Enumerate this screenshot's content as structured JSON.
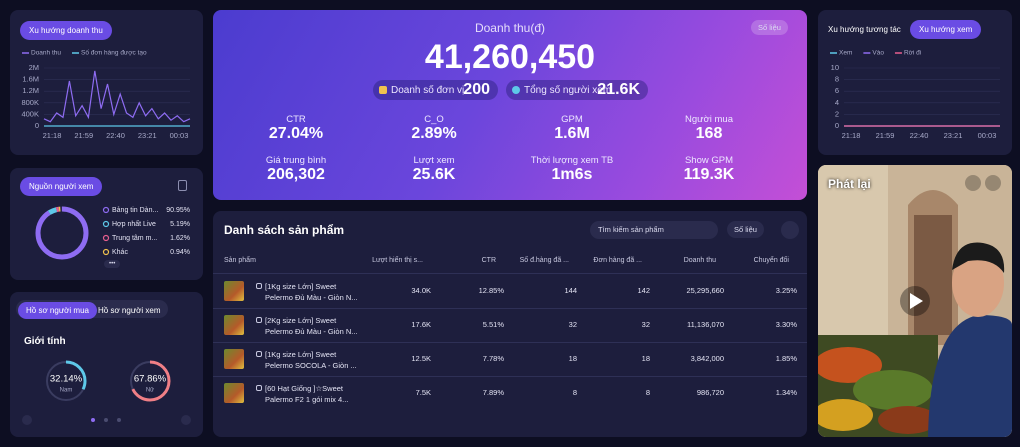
{
  "revenue_trend": {
    "tab": "Xu hướng doanh thu",
    "type": "line",
    "grid": true,
    "series": [
      {
        "name": "Doanh thu",
        "color": "#8e6cf2",
        "values": [
          250000,
          150000,
          450000,
          300000,
          1550000,
          350000,
          700000,
          300000,
          1900000,
          600000,
          1450000,
          400000,
          1100000,
          450000,
          300000,
          800000,
          350000,
          600000,
          250000,
          450000,
          200000,
          350000,
          150000,
          250000
        ]
      },
      {
        "name": "Số đơn hàng được tạo",
        "color": "#5ec8e8",
        "values": [
          0,
          0,
          0,
          0,
          0,
          0,
          0,
          0,
          0,
          0,
          0,
          0,
          0,
          0,
          0,
          0,
          0,
          0,
          0,
          0,
          0,
          0,
          0,
          0
        ]
      }
    ],
    "ylim": [
      0,
      2000000
    ],
    "yticks": [
      0,
      {
        "value": 400000,
        "label": "400K"
      },
      {
        "value": 800000,
        "label": "800K"
      },
      {
        "value": 1200000,
        "label": "1.2M"
      },
      {
        "value": 1600000,
        "label": "1.6M"
      },
      {
        "value": 2000000,
        "label": "2M"
      }
    ],
    "xticks": [
      "21:18",
      "21:59",
      "22:40",
      "23:21",
      "00:03"
    ]
  },
  "viewer_source": {
    "tab": "Nguồn người xem",
    "items": [
      {
        "label": "Bảng tin Dàn...",
        "value": 90.95,
        "value_label": "90.95%",
        "color": "#8e6cf2"
      },
      {
        "label": "Hợp nhất Live",
        "value": 5.19,
        "value_label": "5.19%",
        "color": "#5ec8e8"
      },
      {
        "label": "Trung tâm m...",
        "value": 1.62,
        "value_label": "1.62%",
        "color": "#e85f8f"
      },
      {
        "label": "Khác",
        "value": 0.94,
        "value_label": "0.94%",
        "color": "#f0c24e"
      }
    ],
    "more": "•••"
  },
  "profile": {
    "tabs": [
      "Hồ sơ người mua",
      "Hồ sơ người xem"
    ],
    "title": "Giới tính",
    "items": [
      {
        "label": "Nam",
        "value": 32.14,
        "value_label": "32.14%",
        "color": "#5ec8e8"
      },
      {
        "label": "Nữ",
        "value": 67.86,
        "value_label": "67.86%",
        "color": "#f07f86"
      }
    ]
  },
  "summary": {
    "title": "Doanh thu(đ)",
    "value": "41,260,450",
    "button": "Số liệu",
    "chips": [
      {
        "label": "Doanh số đơn vị",
        "value": "200"
      },
      {
        "label": "Tổng số người xem",
        "value": "21.6K"
      }
    ],
    "metrics": [
      {
        "label": "CTR",
        "value": "27.04%"
      },
      {
        "label": "C_O",
        "value": "2.89%"
      },
      {
        "label": "GPM",
        "value": "1.6M"
      },
      {
        "label": "Người mua",
        "value": "168"
      },
      {
        "label": "Giá trung bình",
        "value": "206,302"
      },
      {
        "label": "Lượt xem",
        "value": "25.6K"
      },
      {
        "label": "Thời lượng xem TB",
        "value": "1m6s"
      },
      {
        "label": "Show GPM",
        "value": "119.3K"
      }
    ]
  },
  "products": {
    "title": "Danh sách sản phẩm",
    "search": "Tìm kiếm sản phẩm",
    "button": "Số liệu",
    "columns": [
      "Sản phẩm",
      "Lượt hiển thị s...",
      "CTR",
      "Số đ.hàng đã ...",
      "Đơn hàng đã ...",
      "Doanh thu",
      "Chuyển đổi"
    ],
    "rows": [
      {
        "name": "[1Kg size Lớn] Sweet Pelermo Đủ Màu - Giòn N...",
        "cells": [
          "34.0K",
          "12.85%",
          "144",
          "142",
          "25,295,660",
          "3.25%"
        ]
      },
      {
        "name": "[2Kg size Lớn] Sweet Pelermo Đủ Màu - Giòn N...",
        "cells": [
          "17.6K",
          "5.51%",
          "32",
          "32",
          "11,136,070",
          "3.30%"
        ]
      },
      {
        "name": "[1Kg size Lớn] Sweet Pelermo SOCOLA - Giòn ...",
        "cells": [
          "12.5K",
          "7.78%",
          "18",
          "18",
          "3,842,000",
          "1.85%"
        ]
      },
      {
        "name": "[60 Hạt Giống ]☆Sweet Palermo F2 1 gói mix 4...",
        "cells": [
          "7.5K",
          "7.89%",
          "8",
          "8",
          "986,720",
          "1.34%"
        ]
      }
    ]
  },
  "engagement_trend": {
    "tabs": [
      "Xu hướng tương tác",
      "Xu hướng xem"
    ],
    "type": "line",
    "grid": true,
    "series": [
      {
        "name": "Xem",
        "color": "#5ec8e8",
        "values": [
          0,
          0,
          0,
          0,
          0,
          0
        ]
      },
      {
        "name": "Vào",
        "color": "#8e6cf2",
        "values": [
          0,
          0,
          0,
          0,
          0,
          0
        ]
      },
      {
        "name": "Rời đi",
        "color": "#e85f8f",
        "values": [
          0,
          0,
          0,
          0,
          0,
          0
        ]
      }
    ],
    "ylim": [
      0,
      10
    ],
    "yticks": [
      0,
      2,
      4,
      6,
      8,
      10
    ],
    "xticks": [
      "21:18",
      "21:59",
      "22:40",
      "23:21",
      "00:03"
    ]
  },
  "video": {
    "title": "Phát lại"
  }
}
